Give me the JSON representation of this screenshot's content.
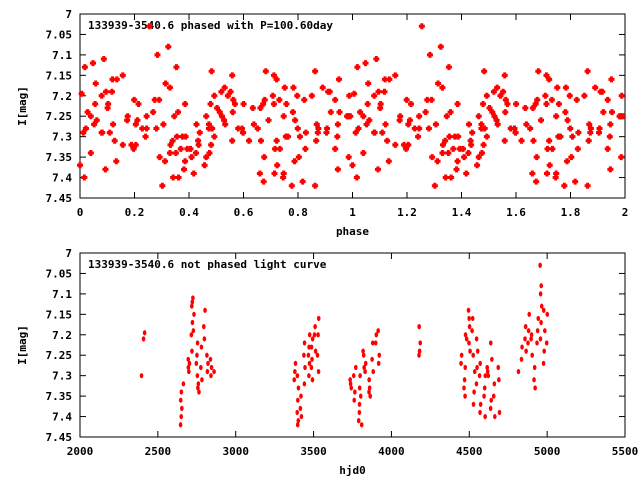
{
  "colors": {
    "points": "#ff0000",
    "axis": "#000000",
    "background": "#ffffff"
  },
  "chart_data": [
    {
      "type": "scatter",
      "title": "133939-3540.6 phased with P=100.60day",
      "xlabel": "phase",
      "ylabel": "I[mag]",
      "xlim": [
        0,
        2
      ],
      "ylim": [
        7,
        7.45
      ],
      "y_inverted": true,
      "period": 100.6,
      "x_ticks": [
        "0",
        "0.2",
        "0.4",
        "0.6",
        "0.8",
        "1",
        "1.2",
        "1.4",
        "1.6",
        "1.8",
        "2"
      ],
      "y_ticks": [
        "7",
        "7.05",
        "7.1",
        "7.15",
        "7.2",
        "7.25",
        "7.3",
        "7.35",
        "7.4",
        "7.45"
      ],
      "points_note": "phase = frac(hjd0 / period) of light-curve points, plotted twice (phase and phase+1)"
    },
    {
      "type": "scatter",
      "title": "133939-3540.6 not phased light curve",
      "xlabel": "hjd0",
      "ylabel": "I[mag]",
      "xlim": [
        2000,
        5500
      ],
      "ylim": [
        7,
        7.45
      ],
      "y_inverted": true,
      "x_ticks": [
        "2000",
        "2500",
        "3000",
        "3500",
        "4000",
        "4500",
        "5000",
        "5500"
      ],
      "y_ticks": [
        "7",
        "7.05",
        "7.1",
        "7.15",
        "7.2",
        "7.25",
        "7.3",
        "7.35",
        "7.4",
        "7.45"
      ],
      "clusters": [
        [
          2400,
          [
            7.3
          ]
        ],
        [
          2410,
          [
            7.21,
            7.195
          ]
        ],
        [
          2650,
          [
            7.34,
            7.36,
            7.38,
            7.4,
            7.42
          ]
        ],
        [
          2660,
          [
            7.32
          ]
        ],
        [
          2700,
          [
            7.28,
            7.27,
            7.29,
            7.26
          ]
        ],
        [
          2720,
          [
            7.24,
            7.2,
            7.17,
            7.13,
            7.11,
            7.12
          ]
        ],
        [
          2730,
          [
            7.15,
            7.19
          ]
        ],
        [
          2750,
          [
            7.22,
            7.25,
            7.27,
            7.3
          ]
        ],
        [
          2760,
          [
            7.33,
            7.34,
            7.32
          ]
        ],
        [
          2780,
          [
            7.23,
            7.28,
            7.31
          ]
        ],
        [
          2800,
          [
            7.14,
            7.21,
            7.18
          ]
        ],
        [
          2820,
          [
            7.25,
            7.27,
            7.29
          ]
        ],
        [
          2840,
          [
            7.26,
            7.28,
            7.3
          ]
        ],
        [
          2860,
          [
            7.29
          ]
        ],
        [
          3380,
          [
            7.27,
            7.29,
            7.31
          ]
        ],
        [
          3400,
          [
            7.3,
            7.33,
            7.36,
            7.39,
            7.41,
            7.42
          ]
        ],
        [
          3420,
          [
            7.35,
            7.38,
            7.4
          ]
        ],
        [
          3440,
          [
            7.22,
            7.25,
            7.28,
            7.32
          ]
        ],
        [
          3470,
          [
            7.2,
            7.23,
            7.25,
            7.27,
            7.3
          ]
        ],
        [
          3490,
          [
            7.23,
            7.21,
            7.26,
            7.28,
            7.31
          ]
        ],
        [
          3510,
          [
            7.18,
            7.2,
            7.24
          ]
        ],
        [
          3530,
          [
            7.16,
            7.2,
            7.25,
            7.29
          ]
        ],
        [
          3740,
          [
            7.31,
            7.33,
            7.32
          ]
        ],
        [
          3760,
          [
            7.3,
            7.34,
            7.36
          ]
        ],
        [
          3770,
          [
            7.28
          ]
        ],
        [
          3790,
          [
            7.39,
            7.41
          ]
        ],
        [
          3800,
          [
            7.33,
            7.35,
            7.3,
            7.37
          ]
        ],
        [
          3810,
          [
            7.42
          ]
        ],
        [
          3820,
          [
            7.25,
            7.24,
            7.28
          ]
        ],
        [
          3830,
          [
            7.27,
            7.29
          ]
        ],
        [
          3860,
          [
            7.31,
            7.35,
            7.33,
            7.34
          ]
        ],
        [
          3880,
          [
            7.22,
            7.26,
            7.29
          ]
        ],
        [
          3900,
          [
            7.2,
            7.22
          ]
        ],
        [
          3920,
          [
            7.19,
            7.25,
            7.27
          ]
        ],
        [
          4180,
          [
            7.18,
            7.22,
            7.24,
            7.25
          ]
        ],
        [
          4450,
          [
            7.25,
            7.27
          ]
        ],
        [
          4470,
          [
            7.28,
            7.31,
            7.33,
            7.35
          ]
        ],
        [
          4480,
          [
            7.2,
            7.21
          ]
        ],
        [
          4500,
          [
            7.16,
            7.14,
            7.18,
            7.22,
            7.24
          ]
        ],
        [
          4520,
          [
            7.16,
            7.19,
            7.25
          ]
        ],
        [
          4530,
          [
            7.29,
            7.34,
            7.37
          ]
        ],
        [
          4550,
          [
            7.21,
            7.24,
            7.28,
            7.32
          ]
        ],
        [
          4570,
          [
            7.27,
            7.3,
            7.37,
            7.39
          ]
        ],
        [
          4600,
          [
            7.3,
            7.33,
            7.35,
            7.4
          ]
        ],
        [
          4620,
          [
            7.28,
            7.3,
            7.29
          ]
        ],
        [
          4640,
          [
            7.22,
            7.26,
            7.36,
            7.38
          ]
        ],
        [
          4660,
          [
            7.32,
            7.35,
            7.4
          ]
        ],
        [
          4690,
          [
            7.39,
            7.31,
            7.28
          ]
        ],
        [
          4820,
          [
            7.29
          ]
        ],
        [
          4840,
          [
            7.23,
            7.26
          ]
        ],
        [
          4860,
          [
            7.18,
            7.21,
            7.24
          ]
        ],
        [
          4880,
          [
            7.15,
            7.19,
            7.22
          ]
        ],
        [
          4900,
          [
            7.21,
            7.25,
            7.2
          ]
        ],
        [
          4920,
          [
            7.28,
            7.31,
            7.33
          ]
        ],
        [
          4940,
          [
            7.16,
            7.19,
            7.22
          ]
        ],
        [
          4960,
          [
            7.03,
            7.08,
            7.1,
            7.13,
            7.17,
            7.21
          ]
        ],
        [
          4980,
          [
            7.14,
            7.19,
            7.24,
            7.27
          ]
        ],
        [
          5000,
          [
            7.15,
            7.22
          ]
        ]
      ]
    }
  ]
}
